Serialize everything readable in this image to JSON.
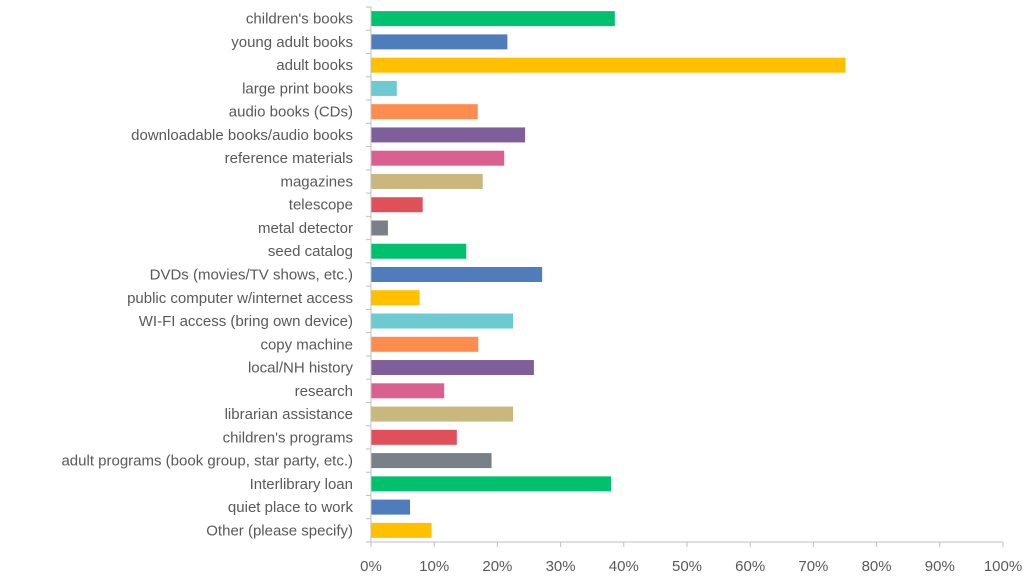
{
  "chart_data": {
    "type": "bar",
    "orientation": "horizontal",
    "categories": [
      "children's books",
      "young adult books",
      "adult books",
      "large print books",
      "audio books (CDs)",
      "downloadable books/audio books",
      "reference materials",
      "magazines",
      "telescope",
      "metal detector",
      "seed catalog",
      "DVDs (movies/TV shows, etc.)",
      "public computer w/internet access",
      "WI-FI access (bring own device)",
      "copy machine",
      "local/NH history",
      "research",
      "librarian assistance",
      "children's programs",
      "adult programs (book group, star party, etc.)",
      "Interlibrary loan",
      "quiet place to work",
      "Other (please specify)"
    ],
    "values": [
      38.5,
      21.5,
      75.0,
      4.0,
      16.8,
      24.3,
      21.0,
      17.6,
      8.1,
      2.6,
      15.0,
      27.0,
      7.6,
      22.4,
      16.9,
      25.7,
      11.5,
      22.4,
      13.5,
      19.0,
      37.9,
      6.1,
      9.5
    ],
    "colors": [
      "#00c16e",
      "#4f7cba",
      "#ffc000",
      "#6ccad0",
      "#ff8c4f",
      "#7f5f9a",
      "#d9608f",
      "#c8b87d",
      "#e0505a",
      "#7a8088"
    ],
    "xlim": [
      0,
      100
    ],
    "x_ticks": [
      "0%",
      "10%",
      "20%",
      "30%",
      "40%",
      "50%",
      "60%",
      "70%",
      "80%",
      "90%",
      "100%"
    ],
    "grid": false,
    "legend": "none",
    "title": "",
    "xlabel": "",
    "ylabel": ""
  }
}
